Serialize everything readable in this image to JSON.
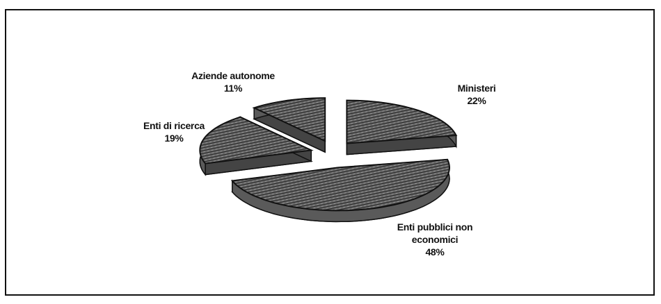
{
  "chart_data": {
    "type": "pie",
    "categories": [
      "Ministeri",
      "Enti pubblici non economici",
      "Enti di ricerca",
      "Aziende autonome"
    ],
    "values": [
      22,
      48,
      19,
      11
    ],
    "value_labels": [
      "22%",
      "48%",
      "19%",
      "11%"
    ],
    "color": "#5a5a5a"
  }
}
